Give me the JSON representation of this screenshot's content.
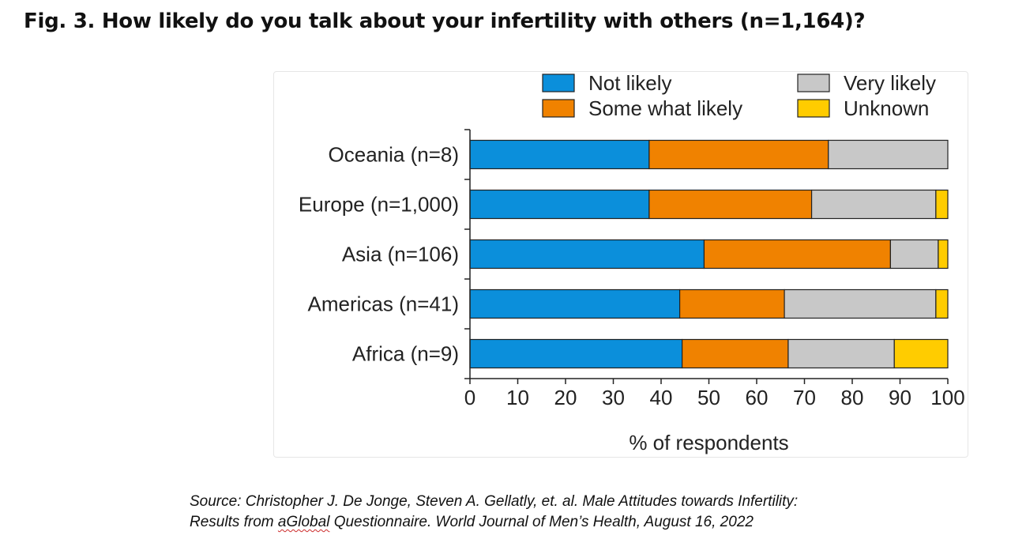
{
  "title": "Fig. 3. How likely do you talk about your infertility with others (n=1,164)?",
  "source": {
    "prefix": "Source: Christopher J. De Jonge, Steven A. Gellatly, et. al. Male Attitudes towards Infertility:",
    "line2_start": "Results from ",
    "misspelled": "aGlobal",
    "line2_end": " Questionnaire. World Journal of Men’s Health, August 16, 2022"
  },
  "chart_data": {
    "type": "bar",
    "orientation": "horizontal",
    "stacked": true,
    "categories": [
      "Oceania (n=8)",
      "Europe (n=1,000)",
      "Asia (n=106)",
      "Americas (n=41)",
      "Africa (n=9)"
    ],
    "series": [
      {
        "name": "Not likely",
        "color": "#0b8fdb",
        "values": [
          37.5,
          37.5,
          49,
          43.9,
          44.4
        ]
      },
      {
        "name": "Some what likely",
        "color": "#f08200",
        "values": [
          37.5,
          34,
          39,
          21.9,
          22.2
        ]
      },
      {
        "name": "Very likely",
        "color": "#c8c8c8",
        "values": [
          25,
          26,
          10,
          31.7,
          22.2
        ]
      },
      {
        "name": "Unknown",
        "color": "#ffcc00",
        "values": [
          0,
          2.5,
          2,
          2.5,
          11.2
        ]
      }
    ],
    "xlabel": "% of respondents",
    "ylabel": "",
    "xlim": [
      0,
      100
    ],
    "xticks": [
      0,
      10,
      20,
      30,
      40,
      50,
      60,
      70,
      80,
      90,
      100
    ],
    "legend_position": "top",
    "grid": false
  }
}
